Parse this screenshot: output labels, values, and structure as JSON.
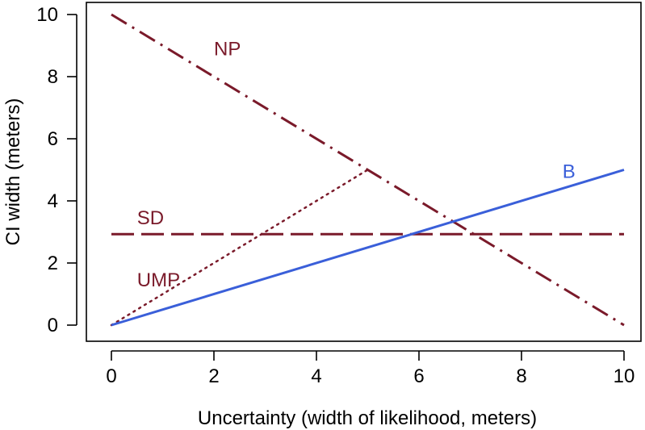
{
  "chart_data": {
    "type": "line",
    "title": "",
    "xlabel": "Uncertainty (width of likelihood, meters)",
    "ylabel": "CI width (meters)",
    "xlim": [
      0,
      10
    ],
    "ylim": [
      0,
      10
    ],
    "xticks": [
      0,
      2,
      4,
      6,
      8,
      10
    ],
    "yticks": [
      0,
      2,
      4,
      6,
      8,
      10
    ],
    "grid": false,
    "series": [
      {
        "name": "NP",
        "label": "NP",
        "color": "#7a1a2a",
        "line_style": "dash-dot",
        "x": [
          0,
          10
        ],
        "y": [
          10,
          0
        ],
        "label_at": [
          2,
          8.9
        ]
      },
      {
        "name": "SD",
        "label": "SD",
        "color": "#7a1a2a",
        "line_style": "long-dash",
        "x": [
          0,
          10
        ],
        "y": [
          2.93,
          2.93
        ],
        "label_at": [
          0.5,
          3.45
        ]
      },
      {
        "name": "UMP",
        "label": "UMP",
        "color": "#7a1a2a",
        "line_style": "dotted",
        "x": [
          0,
          5
        ],
        "y": [
          0,
          5
        ],
        "label_at": [
          0.5,
          1.45
        ]
      },
      {
        "name": "B",
        "label": "B",
        "color": "#3a5fd9",
        "line_style": "solid",
        "x": [
          0,
          10
        ],
        "y": [
          0,
          5
        ],
        "label_at": [
          8.8,
          4.95
        ]
      }
    ]
  }
}
